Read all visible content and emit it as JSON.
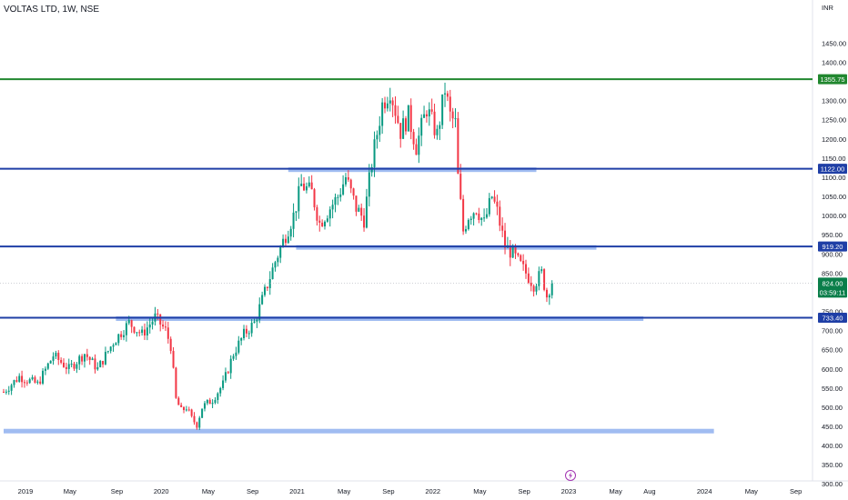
{
  "header": {
    "title": "VOLTAS LTD, 1W, NSE",
    "currency": "INR"
  },
  "chart_data": {
    "type": "candlestick",
    "title": "VOLTAS LTD, 1W, NSE",
    "currency": "INR",
    "y_range": [
      280,
      1500
    ],
    "y_ticks": [
      300,
      350,
      400,
      450,
      500,
      550,
      600,
      650,
      700,
      750,
      850,
      900,
      950,
      1000,
      1050,
      1100,
      1150,
      1200,
      1250,
      1300,
      1350,
      1400,
      1450
    ],
    "x_axis": [
      {
        "label": "2019",
        "week": 0
      },
      {
        "label": "May",
        "week": 17
      },
      {
        "label": "Sep",
        "week": 35
      },
      {
        "label": "2020",
        "week": 52
      },
      {
        "label": "May",
        "week": 70
      },
      {
        "label": "Sep",
        "week": 87
      },
      {
        "label": "2021",
        "week": 104
      },
      {
        "label": "May",
        "week": 122
      },
      {
        "label": "Sep",
        "week": 139
      },
      {
        "label": "2022",
        "week": 156
      },
      {
        "label": "May",
        "week": 174
      },
      {
        "label": "Sep",
        "week": 191
      },
      {
        "label": "2023",
        "week": 208
      },
      {
        "label": "May",
        "week": 226
      },
      {
        "label": "Aug",
        "week": 239
      },
      {
        "label": "2024",
        "week": 260
      },
      {
        "label": "May",
        "week": 278
      },
      {
        "label": "Sep",
        "week": 295
      }
    ],
    "price_path_keypoints": [
      [
        0,
        540
      ],
      [
        6,
        580
      ],
      [
        13,
        560
      ],
      [
        19,
        635
      ],
      [
        25,
        600
      ],
      [
        31,
        640
      ],
      [
        36,
        600
      ],
      [
        42,
        670
      ],
      [
        48,
        720
      ],
      [
        53,
        690
      ],
      [
        58,
        735
      ],
      [
        62,
        700
      ],
      [
        64,
        660
      ],
      [
        66,
        520
      ],
      [
        68,
        490
      ],
      [
        70,
        500
      ],
      [
        72,
        470
      ],
      [
        74,
        455
      ],
      [
        76,
        500
      ],
      [
        80,
        520
      ],
      [
        84,
        560
      ],
      [
        88,
        640
      ],
      [
        92,
        690
      ],
      [
        96,
        720
      ],
      [
        100,
        800
      ],
      [
        104,
        880
      ],
      [
        108,
        950
      ],
      [
        111,
        1000
      ],
      [
        114,
        1080
      ],
      [
        118,
        1060
      ],
      [
        121,
        980
      ],
      [
        124,
        1010
      ],
      [
        128,
        1050
      ],
      [
        131,
        1100
      ],
      [
        135,
        1020
      ],
      [
        138,
        990
      ],
      [
        141,
        1140
      ],
      [
        145,
        1290
      ],
      [
        148,
        1330
      ],
      [
        152,
        1220
      ],
      [
        155,
        1260
      ],
      [
        158,
        1180
      ],
      [
        162,
        1280
      ],
      [
        166,
        1210
      ],
      [
        169,
        1330
      ],
      [
        171,
        1260
      ],
      [
        173,
        1240
      ],
      [
        174,
        1100
      ],
      [
        176,
        960
      ],
      [
        178,
        1000
      ],
      [
        181,
        1020
      ],
      [
        184,
        980
      ],
      [
        187,
        1050
      ],
      [
        189,
        1010
      ],
      [
        192,
        920
      ],
      [
        195,
        900
      ],
      [
        199,
        860
      ],
      [
        203,
        820
      ],
      [
        206,
        850
      ],
      [
        208,
        790
      ],
      [
        209,
        810
      ],
      [
        210,
        824
      ]
    ],
    "horizontal_lines": [
      {
        "value": 1355.75,
        "color": "#21872f",
        "label": "1355.75"
      },
      {
        "value": 1122.0,
        "color": "#1f3fa6",
        "label": "1122.00",
        "band_start_week": 109,
        "band_end_week": 204
      },
      {
        "value": 919.2,
        "color": "#1f3fa6",
        "label": "919.20",
        "band_start_week": 112,
        "band_end_week": 227
      },
      {
        "value": 733.4,
        "color": "#1f3fa6",
        "label": "733.40",
        "band_start_week": 43,
        "band_end_week": 245
      },
      {
        "value": 440,
        "color": "#7b9ee8",
        "band_start_week": 0,
        "band_end_week": 272
      }
    ],
    "last_price": {
      "value": 824.0,
      "label": "824.00",
      "countdown": "03:59:11",
      "color": "#0a7e4a"
    },
    "up_color": "#089981",
    "down_color": "#f23645"
  }
}
